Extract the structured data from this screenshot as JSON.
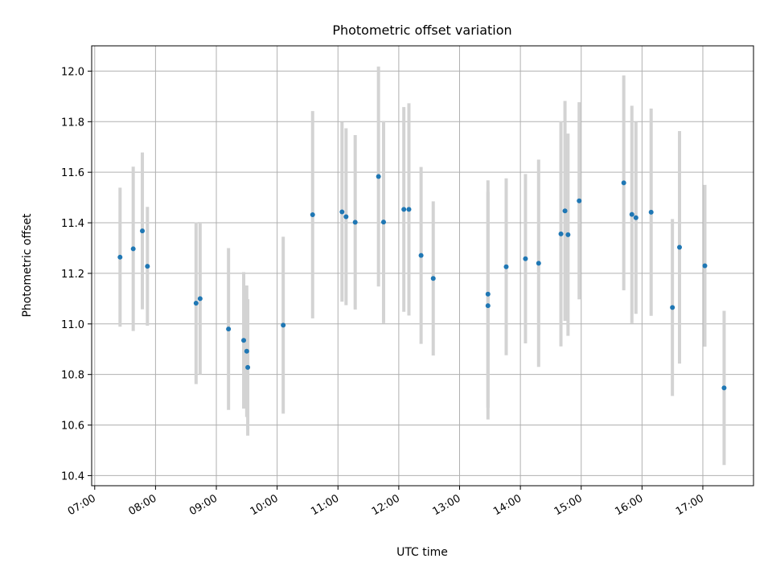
{
  "chart_data": {
    "type": "scatter",
    "title": "Photometric offset variation",
    "xlabel": "UTC time",
    "ylabel": "Photometric offset",
    "x_unit": "time of day (UTC), HH:MM",
    "xlim": [
      "06:57",
      "17:50"
    ],
    "ylim": [
      10.36,
      12.1
    ],
    "xticks": [
      "07:00",
      "08:00",
      "09:00",
      "10:00",
      "11:00",
      "12:00",
      "13:00",
      "14:00",
      "15:00",
      "16:00",
      "17:00"
    ],
    "yticks": [
      10.4,
      10.6,
      10.8,
      11.0,
      11.2,
      11.4,
      11.6,
      11.8,
      12.0
    ],
    "grid": true,
    "legend": "none",
    "colors": {
      "point": "#1f77b4",
      "errorbar": "#d3d3d3",
      "grid": "#b0b0b0"
    },
    "series": [
      {
        "points": [
          {
            "x": "07:25",
            "y": 11.264,
            "err": 0.275
          },
          {
            "x": "07:38",
            "y": 11.297,
            "err": 0.325
          },
          {
            "x": "07:47",
            "y": 11.368,
            "err": 0.31
          },
          {
            "x": "07:52",
            "y": 11.228,
            "err": 0.235
          },
          {
            "x": "08:40",
            "y": 11.082,
            "err": 0.32
          },
          {
            "x": "08:44",
            "y": 11.1,
            "err": 0.3
          },
          {
            "x": "09:12",
            "y": 10.98,
            "err": 0.32
          },
          {
            "x": "09:27",
            "y": 10.935,
            "err": 0.27
          },
          {
            "x": "09:30",
            "y": 10.892,
            "err": 0.26
          },
          {
            "x": "09:31",
            "y": 10.828,
            "err": 0.27
          },
          {
            "x": "10:06",
            "y": 10.995,
            "err": 0.35
          },
          {
            "x": "10:35",
            "y": 11.432,
            "err": 0.41
          },
          {
            "x": "11:04",
            "y": 11.443,
            "err": 0.355
          },
          {
            "x": "11:08",
            "y": 11.424,
            "err": 0.35
          },
          {
            "x": "11:17",
            "y": 11.402,
            "err": 0.345
          },
          {
            "x": "11:40",
            "y": 11.583,
            "err": 0.435
          },
          {
            "x": "11:45",
            "y": 11.403,
            "err": 0.4
          },
          {
            "x": "12:05",
            "y": 11.453,
            "err": 0.405
          },
          {
            "x": "12:10",
            "y": 11.453,
            "err": 0.42
          },
          {
            "x": "12:22",
            "y": 11.271,
            "err": 0.35
          },
          {
            "x": "12:34",
            "y": 11.18,
            "err": 0.305
          },
          {
            "x": "13:28",
            "y": 11.118,
            "err": 0.45
          },
          {
            "x": "13:28",
            "y": 11.072,
            "err": 0.45
          },
          {
            "x": "13:46",
            "y": 11.226,
            "err": 0.35
          },
          {
            "x": "14:05",
            "y": 11.258,
            "err": 0.335
          },
          {
            "x": "14:18",
            "y": 11.24,
            "err": 0.41
          },
          {
            "x": "14:40",
            "y": 11.356,
            "err": 0.445
          },
          {
            "x": "14:44",
            "y": 11.447,
            "err": 0.435
          },
          {
            "x": "14:47",
            "y": 11.353,
            "err": 0.4
          },
          {
            "x": "14:58",
            "y": 11.487,
            "err": 0.39
          },
          {
            "x": "15:42",
            "y": 11.558,
            "err": 0.425
          },
          {
            "x": "15:50",
            "y": 11.433,
            "err": 0.43
          },
          {
            "x": "15:54",
            "y": 11.42,
            "err": 0.38
          },
          {
            "x": "16:09",
            "y": 11.442,
            "err": 0.41
          },
          {
            "x": "16:30",
            "y": 11.065,
            "err": 0.35
          },
          {
            "x": "16:37",
            "y": 11.303,
            "err": 0.46
          },
          {
            "x": "17:02",
            "y": 11.23,
            "err": 0.32
          },
          {
            "x": "17:21",
            "y": 10.747,
            "err": 0.305
          }
        ]
      }
    ]
  }
}
